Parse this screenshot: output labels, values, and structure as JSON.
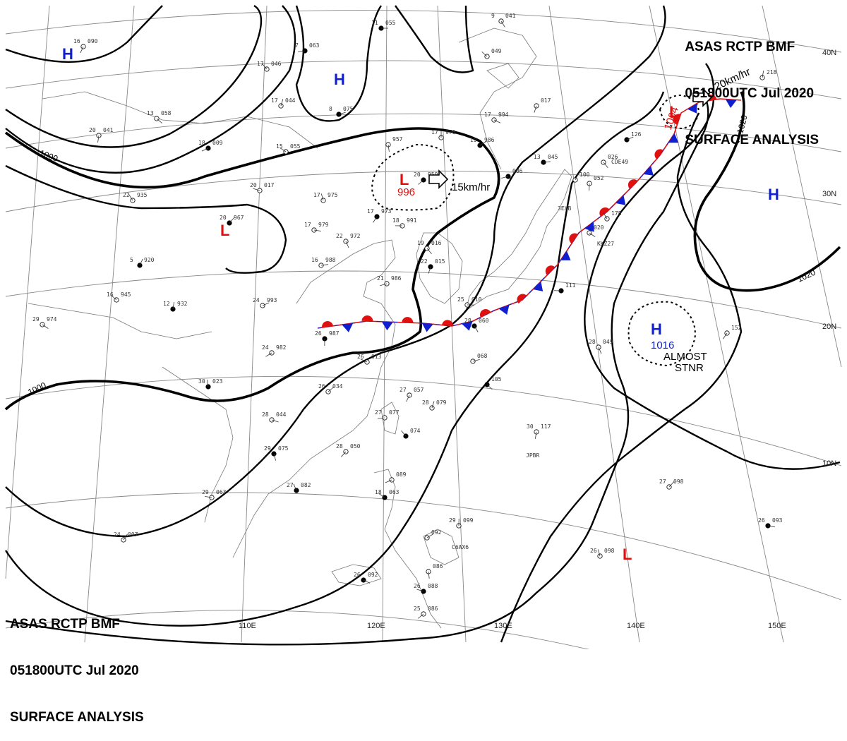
{
  "header": {
    "line1": "ASAS    RCTP    BMF",
    "line2": "051800UTC   Jul   2020",
    "line3": "SURFACE ANALYSIS"
  },
  "footer": {
    "line1": "ASAS    RCTP    BMF",
    "line2": "051800UTC   Jul   2020",
    "line3": "SURFACE ANALYSIS"
  },
  "latitude_labels": [
    "40N",
    "30N",
    "20N",
    "10N"
  ],
  "longitude_labels": [
    "110E",
    "120E",
    "130E",
    "140E",
    "150E"
  ],
  "isobar_labels": [
    "1000",
    "1000",
    "1020",
    "1020"
  ],
  "pressure_systems": [
    {
      "type": "H",
      "value": "",
      "color": "#1020d0"
    },
    {
      "type": "H",
      "value": "",
      "color": "#1020d0"
    },
    {
      "type": "L",
      "value": "",
      "color": "#e01010"
    },
    {
      "type": "L",
      "value": "996",
      "color": "#e01010",
      "motion": "15km/hr"
    },
    {
      "type": "L",
      "value": "1004",
      "color": "#e01010",
      "motion": "20km/hr"
    },
    {
      "type": "H",
      "value": "",
      "color": "#1020d0"
    },
    {
      "type": "H",
      "value": "1016",
      "color": "#1020d0",
      "note_line1": "ALMOST",
      "note_line2": "STNR"
    },
    {
      "type": "L",
      "value": "",
      "color": "#e01010"
    }
  ],
  "front": {
    "type": "stationary",
    "warm_color": "#e01010",
    "cold_color": "#1020d0"
  },
  "stations": [
    {
      "t": "11",
      "p": "055"
    },
    {
      "t": "9",
      "p": "041"
    },
    {
      "t": "16",
      "p": "090"
    },
    {
      "t": "7",
      "p": "063"
    },
    {
      "t": "17",
      "p": "046"
    },
    {
      "t": "17",
      "p": "044"
    },
    {
      "t": "8",
      "p": "075"
    },
    {
      "t": "13",
      "p": "058"
    },
    {
      "t": "20",
      "p": "041"
    },
    {
      "t": "18",
      "p": "009"
    },
    {
      "t": "15",
      "p": "055"
    },
    {
      "t": "17",
      "p": "976"
    },
    {
      "t": "19",
      "p": "986"
    },
    {
      "t": "17",
      "p": "994"
    },
    {
      "t": "",
      "p": "957"
    },
    {
      "t": "20",
      "p": "959"
    },
    {
      "t": "20",
      "p": "017"
    },
    {
      "t": "17",
      "p": "975"
    },
    {
      "t": "20",
      "p": "967"
    },
    {
      "t": "17",
      "p": "979"
    },
    {
      "t": "22",
      "p": "972"
    },
    {
      "t": "17",
      "p": "973"
    },
    {
      "t": "18",
      "p": "991"
    },
    {
      "t": "22",
      "p": "935"
    },
    {
      "t": "5",
      "p": "920"
    },
    {
      "t": "16",
      "p": "988"
    },
    {
      "t": "19",
      "p": "016"
    },
    {
      "t": "22",
      "p": "015"
    },
    {
      "t": "21",
      "p": "986"
    },
    {
      "t": "16",
      "p": "945"
    },
    {
      "t": "12",
      "p": "932"
    },
    {
      "t": "24",
      "p": "993"
    },
    {
      "t": "29",
      "p": "974"
    },
    {
      "t": "26",
      "p": "987"
    },
    {
      "t": "24",
      "p": "982"
    },
    {
      "t": "26",
      "p": "013"
    },
    {
      "t": "30",
      "p": "023"
    },
    {
      "t": "26",
      "p": "034"
    },
    {
      "t": "28",
      "p": "044"
    },
    {
      "t": "29",
      "p": "075"
    },
    {
      "t": "28",
      "p": "050"
    },
    {
      "t": "29",
      "p": "063"
    },
    {
      "t": "27",
      "p": "082"
    },
    {
      "t": "24",
      "p": "007"
    },
    {
      "t": "25",
      "p": "010"
    },
    {
      "t": "28",
      "p": "060"
    },
    {
      "t": "27",
      "p": "057"
    },
    {
      "t": "27",
      "p": "077"
    },
    {
      "t": "",
      "p": "074"
    },
    {
      "t": "28",
      "p": "079"
    },
    {
      "t": "",
      "p": "068"
    },
    {
      "t": "",
      "p": "105"
    },
    {
      "t": "30",
      "p": "117"
    },
    {
      "t": "",
      "p": "089"
    },
    {
      "t": "18",
      "p": "063"
    },
    {
      "t": "29",
      "p": "099"
    },
    {
      "t": "",
      "p": "092"
    },
    {
      "t": "26",
      "p": "092"
    },
    {
      "t": "",
      "p": "086"
    },
    {
      "t": "25",
      "p": "086"
    },
    {
      "t": "26",
      "p": "088"
    },
    {
      "t": "26",
      "p": "098"
    },
    {
      "t": "27",
      "p": "098"
    },
    {
      "t": "26",
      "p": "093"
    },
    {
      "t": "28",
      "p": "049"
    },
    {
      "t": "",
      "p": "152"
    },
    {
      "t": "",
      "p": "111"
    },
    {
      "t": "",
      "p": "178"
    },
    {
      "t": "",
      "p": "100"
    },
    {
      "t": "13",
      "p": "045"
    },
    {
      "t": "",
      "p": "026"
    },
    {
      "t": "",
      "p": "017"
    },
    {
      "t": "",
      "p": "006"
    },
    {
      "t": "",
      "p": "049"
    },
    {
      "t": "",
      "p": "218"
    },
    {
      "t": "",
      "p": "126"
    },
    {
      "t": "",
      "p": "020"
    },
    {
      "t": "",
      "p": "052"
    }
  ],
  "ship_ids": [
    "CDE49",
    "KKZ27",
    "JPBR",
    "C6AX6",
    "3EXB"
  ]
}
